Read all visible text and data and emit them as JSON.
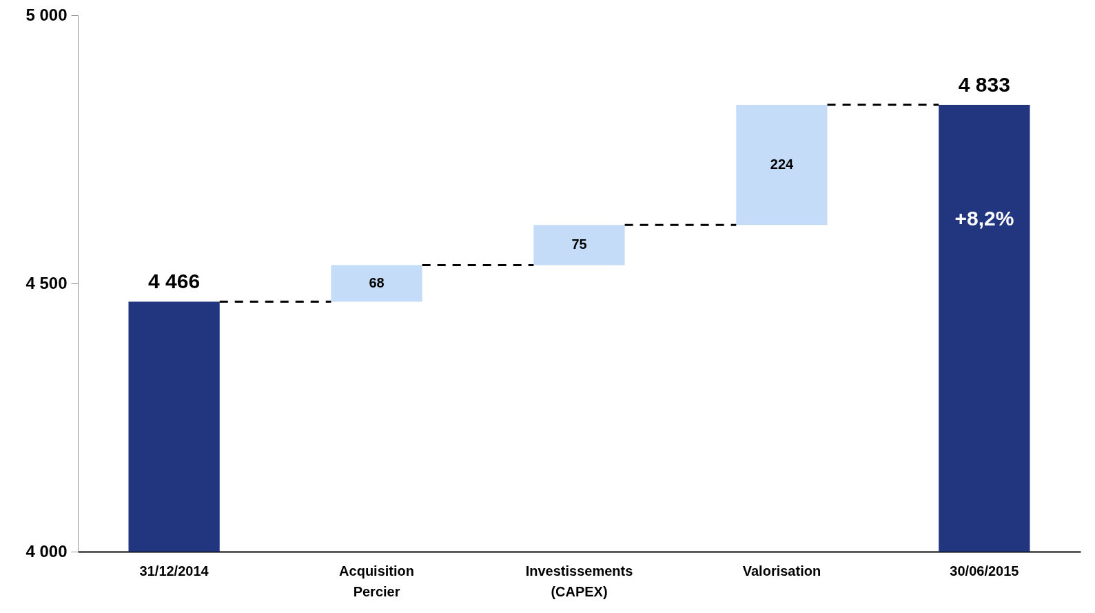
{
  "chart_data": {
    "type": "bar",
    "categories": [
      "31/12/2014",
      "Acquisition Percier",
      "Investissements (CAPEX)",
      "Valorisation",
      "30/06/2015"
    ],
    "values": [
      4466,
      68,
      75,
      224,
      4833
    ],
    "base": [
      null,
      4466,
      4534,
      4609,
      null
    ],
    "colors": [
      "#22367f",
      "#c5dcf9",
      "#c5dcf9",
      "#c5dcf9",
      "#22367f"
    ],
    "value_labels": [
      "4 466",
      "68",
      "75",
      "224",
      "4 833"
    ],
    "ylim": [
      4000,
      5000
    ],
    "yticks": [
      {
        "value": 4000,
        "label": "4 000"
      },
      {
        "value": 4500,
        "label": "4 500"
      },
      {
        "value": 5000,
        "label": "5 000"
      }
    ],
    "annotations": [
      "+8,2%"
    ],
    "grid": false
  }
}
